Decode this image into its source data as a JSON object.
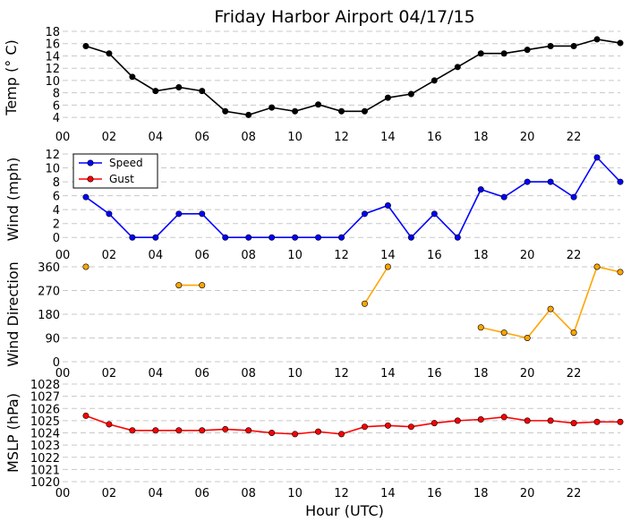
{
  "title": "Friday Harbor Airport 04/17/15",
  "xlabel": "Hour (UTC)",
  "x_ticks": [
    0,
    2,
    4,
    6,
    8,
    10,
    12,
    14,
    16,
    18,
    20,
    22
  ],
  "x_tick_labels": [
    "00",
    "02",
    "04",
    "06",
    "08",
    "10",
    "12",
    "14",
    "16",
    "18",
    "20",
    "22"
  ],
  "xlim": [
    0,
    24
  ],
  "chart_data": [
    {
      "type": "line",
      "ylabel": "Temp ($^\\circ$C)",
      "ylabel_display": "Temp (° C)",
      "ylim": [
        3,
        18
      ],
      "y_ticks": [
        4,
        6,
        8,
        10,
        12,
        14,
        16,
        18
      ],
      "grid": true,
      "series": [
        {
          "color": "#000000",
          "x": [
            1,
            2,
            3,
            4,
            5,
            6,
            7,
            8,
            9,
            10,
            11,
            12,
            13,
            14,
            15,
            16,
            17,
            18,
            19,
            20,
            21,
            22,
            23,
            24
          ],
          "values": [
            15.6,
            14.4,
            10.6,
            8.3,
            8.9,
            8.3,
            5.0,
            4.4,
            5.6,
            5.0,
            6.1,
            5.0,
            5.0,
            7.2,
            7.8,
            10.0,
            12.2,
            14.4,
            14.4,
            15.0,
            15.6,
            15.6,
            16.7,
            16.1
          ]
        }
      ]
    },
    {
      "type": "line",
      "ylabel": "Wind (mph)",
      "ylim": [
        -1,
        12
      ],
      "y_ticks": [
        0,
        2,
        4,
        6,
        8,
        10,
        12
      ],
      "grid": true,
      "legend": "top-left",
      "series": [
        {
          "name": "Speed",
          "color": "#0000ff",
          "x": [
            1,
            2,
            3,
            4,
            5,
            6,
            7,
            8,
            9,
            10,
            11,
            12,
            13,
            14,
            15,
            16,
            17,
            18,
            19,
            20,
            21,
            22,
            23,
            24
          ],
          "values": [
            5.8,
            3.4,
            0,
            0,
            3.4,
            3.4,
            0,
            0,
            0,
            0,
            0,
            0,
            3.4,
            4.6,
            0,
            3.4,
            0,
            6.9,
            5.8,
            8.0,
            8.0,
            5.8,
            11.5,
            8.0
          ]
        },
        {
          "name": "Gust",
          "color": "#ff0000",
          "x": [],
          "values": []
        }
      ]
    },
    {
      "type": "line",
      "ylabel": "Wind Direction",
      "ylim": [
        0,
        360
      ],
      "y_ticks": [
        0,
        90,
        180,
        270,
        360
      ],
      "grid": true,
      "series": [
        {
          "color": "#ffa500",
          "x": [
            1,
            2,
            3,
            4,
            5,
            6,
            7,
            8,
            9,
            10,
            11,
            12,
            13,
            14,
            15,
            16,
            17,
            18,
            19,
            20,
            21,
            22,
            23,
            24
          ],
          "values": [
            360,
            null,
            null,
            null,
            290,
            290,
            null,
            null,
            null,
            null,
            null,
            null,
            220,
            360,
            null,
            null,
            null,
            130,
            110,
            90,
            200,
            110,
            360,
            340
          ]
        }
      ]
    },
    {
      "type": "line",
      "ylabel": "MSLP (hPa)",
      "ylim": [
        1020,
        1028
      ],
      "y_ticks": [
        1020,
        1021,
        1022,
        1023,
        1024,
        1025,
        1026,
        1027,
        1028
      ],
      "grid": true,
      "series": [
        {
          "color": "#ff0000",
          "x": [
            1,
            2,
            3,
            4,
            5,
            6,
            7,
            8,
            9,
            10,
            11,
            12,
            13,
            14,
            15,
            16,
            17,
            18,
            19,
            20,
            21,
            22,
            23,
            24
          ],
          "values": [
            1025.4,
            1024.7,
            1024.2,
            1024.2,
            1024.2,
            1024.2,
            1024.3,
            1024.2,
            1024.0,
            1023.9,
            1024.1,
            1023.9,
            1024.5,
            1024.6,
            1024.5,
            1024.8,
            1025.0,
            1025.1,
            1025.3,
            1025.0,
            1025.0,
            1024.8,
            1024.9,
            1024.9
          ]
        }
      ]
    }
  ]
}
